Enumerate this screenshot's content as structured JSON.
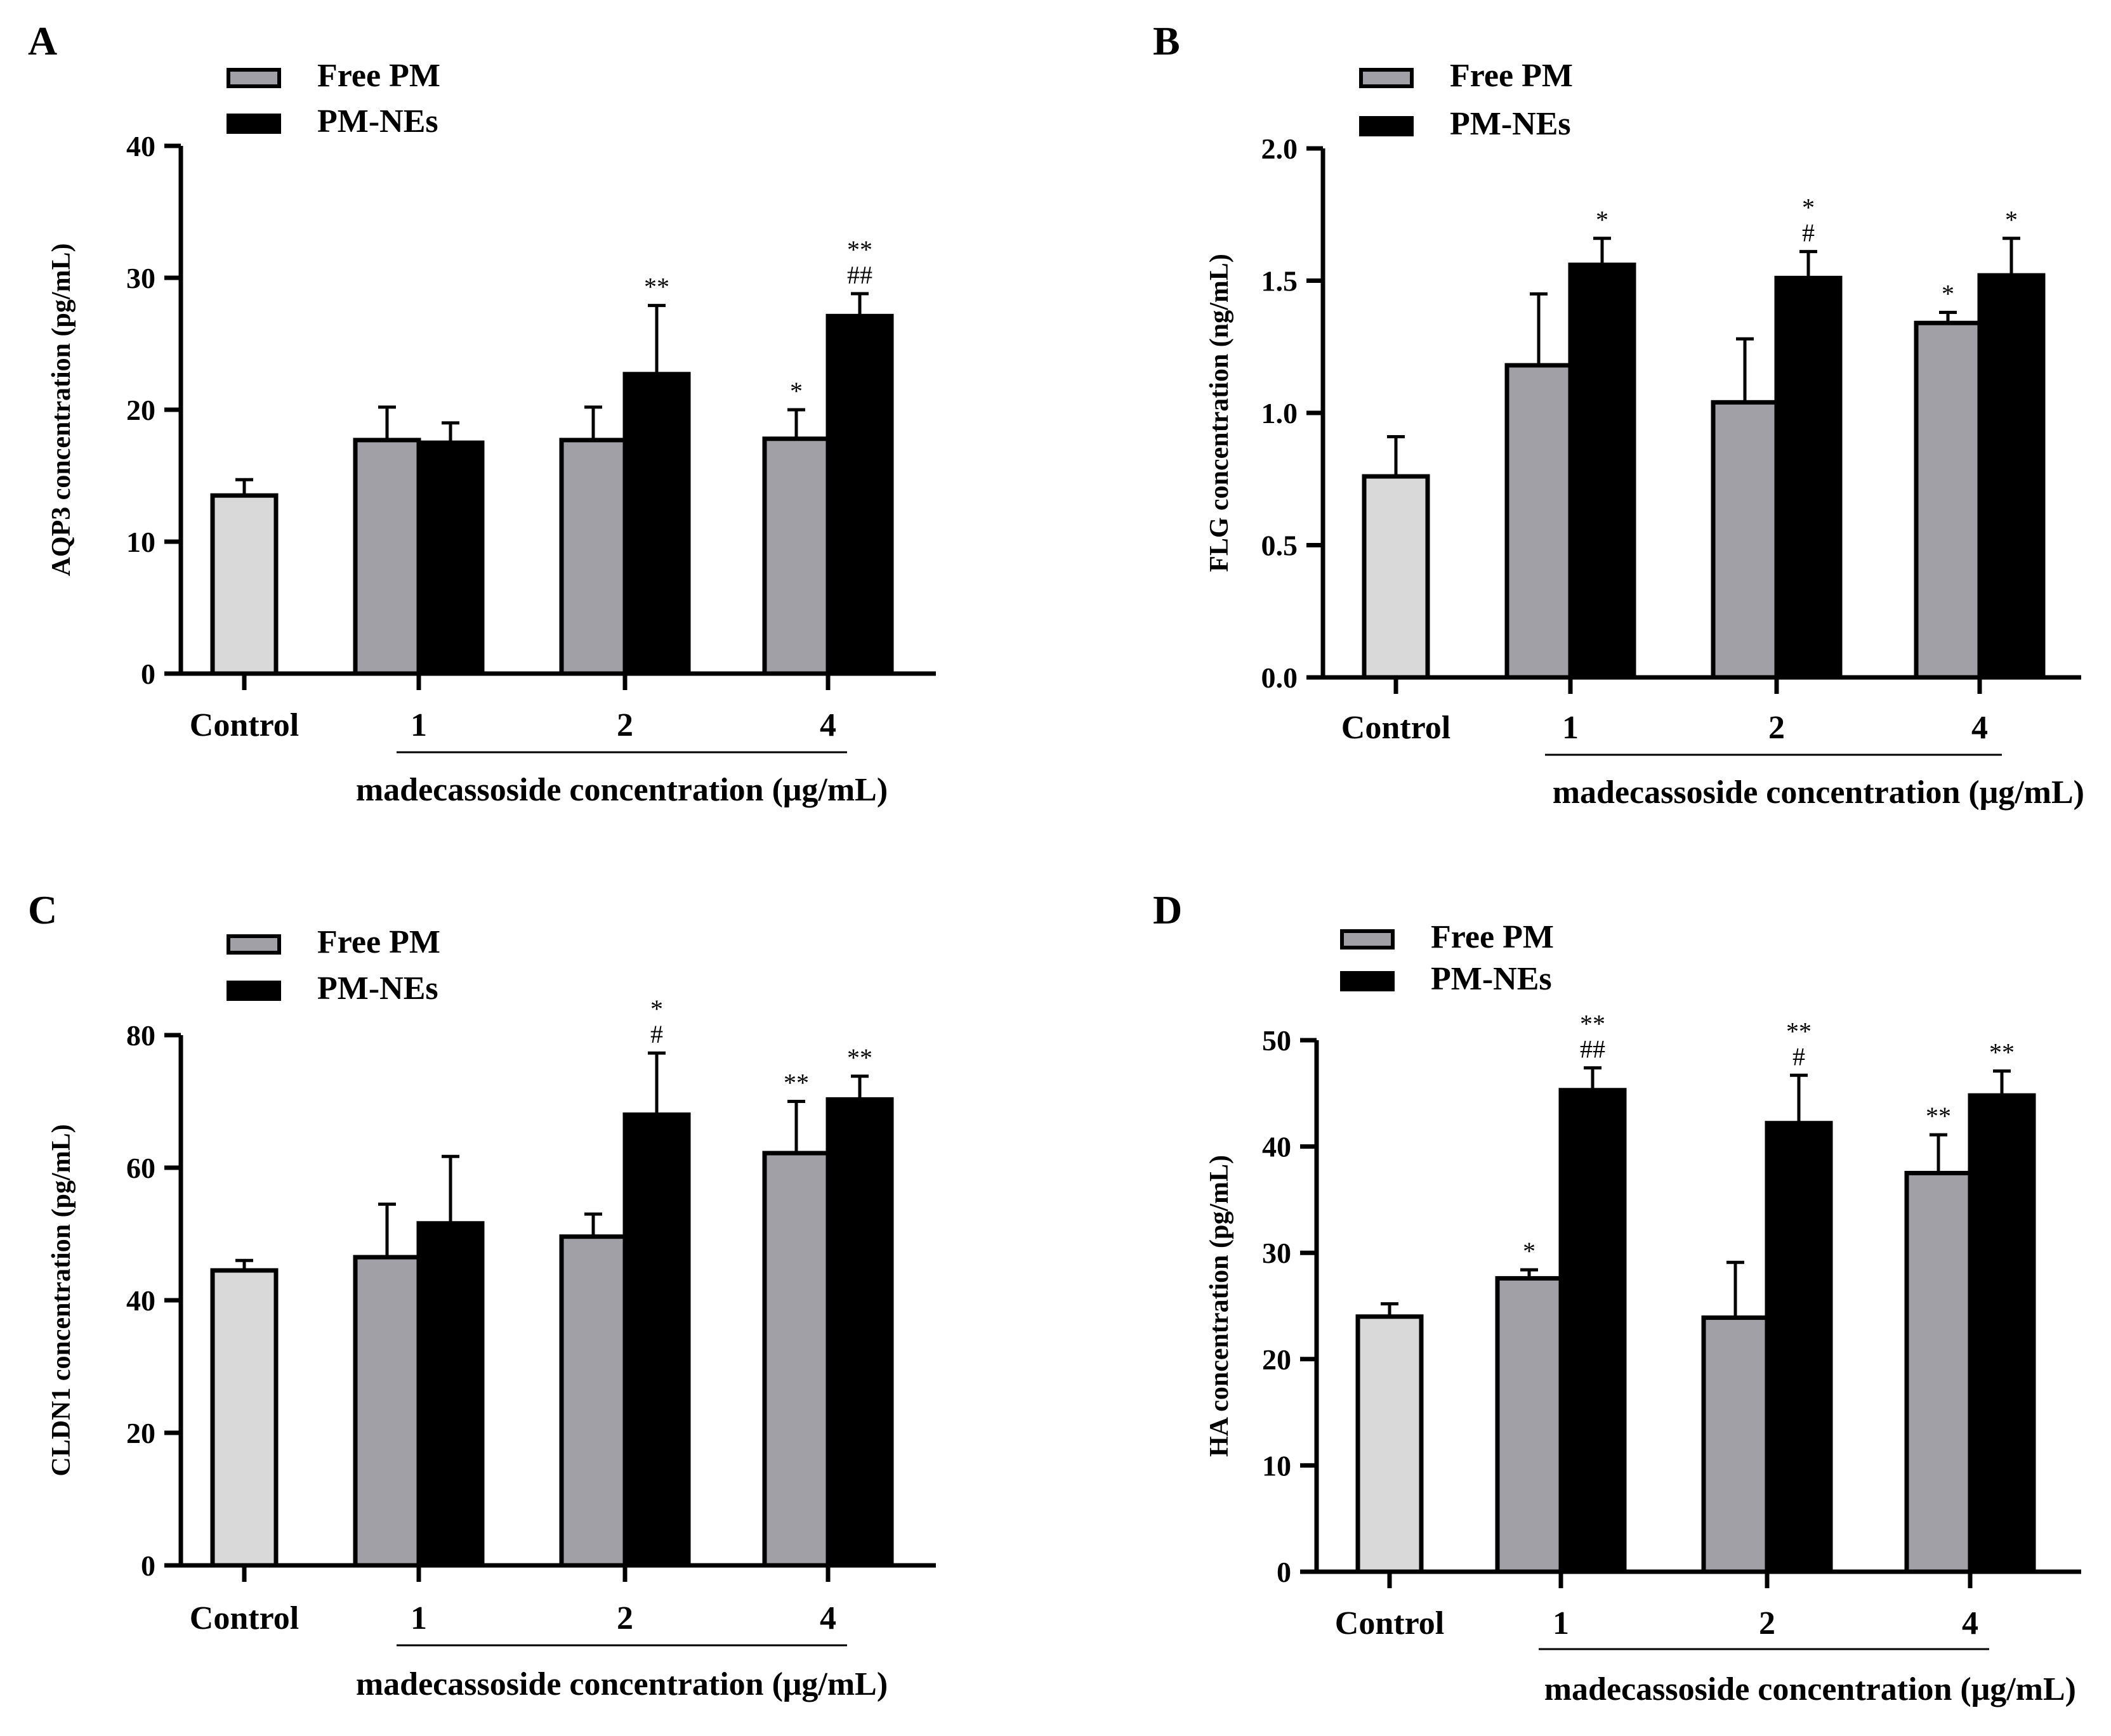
{
  "chart_data": [
    {
      "type": "bar",
      "panel": "A",
      "ylabel": "AQP3 concentration (pg/mL)",
      "xlabel": "madecassoside concentration (μg/mL)",
      "ylim": [
        0,
        40
      ],
      "yticks": [
        0,
        10,
        20,
        30,
        40
      ],
      "ytick_labels": [
        "0",
        "10",
        "20",
        "30",
        "40"
      ],
      "legend": [
        "Free PM",
        "PM-NEs"
      ],
      "control": {
        "label": "Control",
        "value": 13.5,
        "err": 1.2
      },
      "categories": [
        "1",
        "2",
        "4"
      ],
      "series": [
        {
          "name": "Free PM",
          "values": [
            17.7,
            17.7,
            17.8
          ],
          "errors": [
            2.5,
            2.5,
            2.2
          ],
          "annotations": [
            "",
            "",
            "*"
          ]
        },
        {
          "name": "PM-NEs",
          "values": [
            17.5,
            22.7,
            27.1
          ],
          "errors": [
            1.5,
            5.2,
            1.7
          ],
          "annotations": [
            "",
            "**",
            "**\n##"
          ]
        }
      ]
    },
    {
      "type": "bar",
      "panel": "B",
      "ylabel": "FLG concentration (ng/mL)",
      "xlabel": "madecassoside concentration (μg/mL)",
      "ylim": [
        0,
        2
      ],
      "yticks": [
        0,
        0.5,
        1,
        1.5,
        2
      ],
      "ytick_labels": [
        "0.0",
        "0.5",
        "1.0",
        "1.5",
        "2.0"
      ],
      "legend": [
        "Free PM",
        "PM-NEs"
      ],
      "control": {
        "label": "Control",
        "value": 0.76,
        "err": 0.15
      },
      "categories": [
        "1",
        "2",
        "4"
      ],
      "series": [
        {
          "name": "Free PM",
          "values": [
            1.18,
            1.04,
            1.34
          ],
          "errors": [
            0.27,
            0.24,
            0.04
          ],
          "annotations": [
            "",
            "",
            "*"
          ]
        },
        {
          "name": "PM-NEs",
          "values": [
            1.56,
            1.51,
            1.52
          ],
          "errors": [
            0.1,
            0.1,
            0.14
          ],
          "annotations": [
            "*",
            "*\n#",
            "*"
          ]
        }
      ]
    },
    {
      "type": "bar",
      "panel": "C",
      "ylabel": "CLDN1 concentration (pg/mL)",
      "xlabel": "madecassoside concentration (μg/mL)",
      "ylim": [
        0,
        80
      ],
      "yticks": [
        0,
        20,
        40,
        60,
        80
      ],
      "ytick_labels": [
        "0",
        "20",
        "40",
        "60",
        "80"
      ],
      "legend": [
        "Free PM",
        "PM-NEs"
      ],
      "control": {
        "label": "Control",
        "value": 44.5,
        "err": 1.5
      },
      "categories": [
        "1",
        "2",
        "4"
      ],
      "series": [
        {
          "name": "Free PM",
          "values": [
            46.5,
            49.6,
            62.2
          ],
          "errors": [
            8.0,
            3.4,
            7.8
          ],
          "annotations": [
            "",
            "",
            "**"
          ]
        },
        {
          "name": "PM-NEs",
          "values": [
            51.6,
            68.0,
            70.3
          ],
          "errors": [
            10.1,
            9.3,
            3.5
          ],
          "annotations": [
            "",
            "*\n#",
            "**"
          ]
        }
      ]
    },
    {
      "type": "bar",
      "panel": "D",
      "ylabel": "HA concentration (pg/mL)",
      "xlabel": "madecassoside concentration (μg/mL)",
      "ylim": [
        0,
        50
      ],
      "yticks": [
        0,
        10,
        20,
        30,
        40,
        50
      ],
      "ytick_labels": [
        "0",
        "10",
        "20",
        "30",
        "40",
        "50"
      ],
      "legend": [
        "Free PM",
        "PM-NEs"
      ],
      "control": {
        "label": "Control",
        "value": 24.0,
        "err": 1.2
      },
      "categories": [
        "1",
        "2",
        "4"
      ],
      "series": [
        {
          "name": "Free PM",
          "values": [
            27.6,
            23.9,
            37.5
          ],
          "errors": [
            0.8,
            5.2,
            3.6
          ],
          "annotations": [
            "*",
            "",
            "**"
          ]
        },
        {
          "name": "PM-NEs",
          "values": [
            45.3,
            42.2,
            44.8
          ],
          "errors": [
            2.1,
            4.5,
            2.3
          ],
          "annotations": [
            "**\n##",
            "**\n#",
            "**"
          ]
        }
      ]
    }
  ],
  "colors": {
    "control": "#d9d9d9",
    "free_pm": "#a1a0a6",
    "pm_nes": "#000000",
    "axis": "#000000"
  }
}
